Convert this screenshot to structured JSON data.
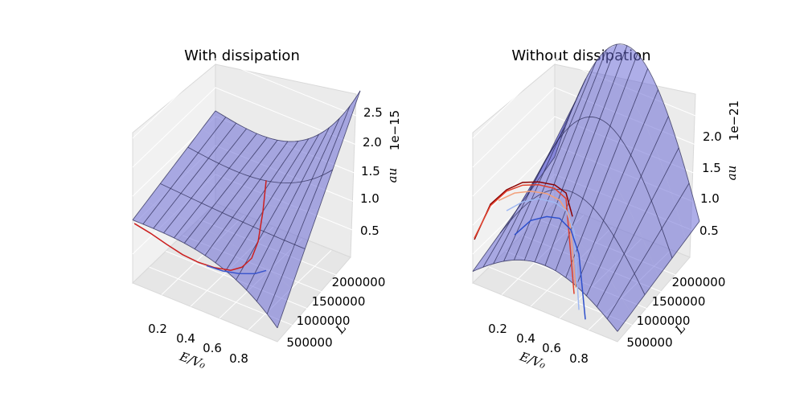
{
  "chart_data": [
    {
      "type": "surface3d",
      "title": "With dissipation",
      "xlabel": "E/V₀",
      "ylabel": "L",
      "zlabel": "au",
      "z_offset_label": "1e−15",
      "x_ticks": [
        "0.2",
        "0.4",
        "0.6",
        "0.8"
      ],
      "y_ticks": [
        "500000",
        "1000000",
        "1500000",
        "2000000"
      ],
      "z_ticks": [
        "0.5",
        "1.0",
        "1.5",
        "2.0",
        "2.5"
      ],
      "xlim": [
        0.05,
        0.95
      ],
      "ylim": [
        400000,
        2100000
      ],
      "zlim": [
        0,
        2.6
      ],
      "grid": true,
      "surface_color": "#6b6bd6",
      "curves": [
        {
          "color": "#cc1f1f",
          "x": [
            0.05,
            0.15,
            0.25,
            0.35,
            0.45,
            0.55,
            0.65,
            0.72,
            0.78,
            0.82,
            0.85,
            0.87
          ],
          "z": [
            0.9,
            0.85,
            0.78,
            0.72,
            0.7,
            0.72,
            0.78,
            0.9,
            1.1,
            1.4,
            1.9,
            2.4
          ]
        },
        {
          "color": "#3a55cc",
          "x": [
            0.5,
            0.6,
            0.7,
            0.8,
            0.87
          ],
          "z": [
            0.7,
            0.72,
            0.78,
            0.88,
            1.0
          ]
        }
      ]
    },
    {
      "type": "surface3d",
      "title": "Without dissipation",
      "xlabel": "E/V₀",
      "ylabel": "L",
      "zlabel": "au",
      "z_offset_label": "1e−21",
      "x_ticks": [
        "0.2",
        "0.4",
        "0.6",
        "0.8"
      ],
      "y_ticks": [
        "500000",
        "1000000",
        "1500000",
        "2000000"
      ],
      "z_ticks": [
        "0.5",
        "1.0",
        "1.5",
        "2.0"
      ],
      "xlim": [
        0.05,
        0.95
      ],
      "ylim": [
        400000,
        2100000
      ],
      "zlim": [
        0,
        2.4
      ],
      "grid": true,
      "surface_color": "#6b6bd6",
      "curves": [
        {
          "color": "#8b0000",
          "x": [
            0.05,
            0.15,
            0.25,
            0.35,
            0.45,
            0.55,
            0.62,
            0.66
          ],
          "z": [
            0.6,
            1.2,
            1.5,
            1.7,
            1.8,
            1.85,
            1.8,
            1.5
          ]
        },
        {
          "color": "#e0402c",
          "x": [
            0.05,
            0.15,
            0.25,
            0.35,
            0.45,
            0.55,
            0.62,
            0.67
          ],
          "z": [
            0.62,
            1.18,
            1.48,
            1.66,
            1.76,
            1.8,
            1.72,
            0.4
          ]
        },
        {
          "color": "#f2a07a",
          "x": [
            0.2,
            0.3,
            0.4,
            0.5,
            0.58,
            0.64,
            0.68
          ],
          "z": [
            1.3,
            1.5,
            1.62,
            1.68,
            1.66,
            1.5,
            0.5
          ]
        },
        {
          "color": "#9fb8f2",
          "x": [
            0.25,
            0.35,
            0.45,
            0.55,
            0.62,
            0.67,
            0.7
          ],
          "z": [
            1.2,
            1.42,
            1.56,
            1.6,
            1.55,
            1.3,
            0.2
          ]
        },
        {
          "color": "#2d4fcc",
          "x": [
            0.3,
            0.4,
            0.5,
            0.58,
            0.65,
            0.7,
            0.74
          ],
          "z": [
            0.9,
            1.2,
            1.35,
            1.4,
            1.3,
            1.0,
            0.1
          ]
        }
      ]
    }
  ]
}
